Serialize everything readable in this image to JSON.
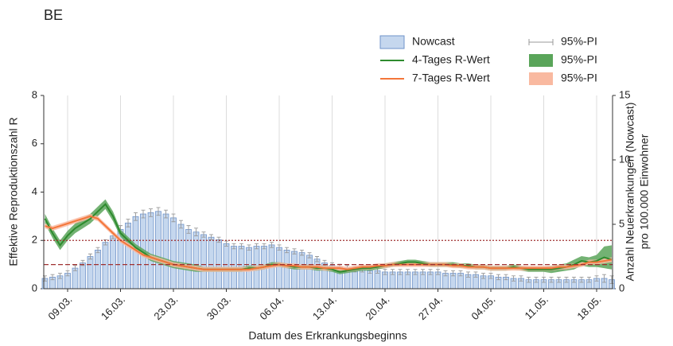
{
  "chart_data": {
    "type": "bar-line",
    "title": "BE",
    "xlabel": "Datum des Erkrankungsbeginns",
    "ylabel": "Effektive Reproduktionszahl R",
    "y2label": [
      "Anzahl Neuerkrankungen (Nowcast)",
      "pro 100.000 Einwohner"
    ],
    "categories": [
      null,
      null,
      null,
      "09.03.",
      null,
      null,
      null,
      null,
      null,
      null,
      "16.03.",
      null,
      null,
      null,
      null,
      null,
      null,
      "23.03.",
      null,
      null,
      null,
      null,
      null,
      null,
      "30.03.",
      null,
      null,
      null,
      null,
      null,
      null,
      "06.04.",
      null,
      null,
      null,
      null,
      null,
      null,
      "13.04.",
      null,
      null,
      null,
      null,
      null,
      null,
      "20.04.",
      null,
      null,
      null,
      null,
      null,
      null,
      "27.04.",
      null,
      null,
      null,
      null,
      null,
      null,
      "04.05.",
      null,
      null,
      null,
      null,
      null,
      null,
      "11.05.",
      null,
      null,
      null,
      null,
      null,
      null,
      "18.05.",
      null,
      null
    ],
    "ylim": [
      0,
      8
    ],
    "yticks": [
      0,
      2,
      4,
      6,
      8
    ],
    "y2lim": [
      0,
      15
    ],
    "y2ticks": [
      0,
      5,
      10,
      15
    ],
    "hlines": [
      {
        "value": 1,
        "style": "dashed"
      },
      {
        "value": 2,
        "style": "dotted"
      }
    ],
    "grid": true,
    "series": [
      {
        "name": "Nowcast",
        "type": "bar",
        "axis": "y2",
        "color": "#c5d7ee",
        "edge": "#6f93c9",
        "values": [
          0.8,
          0.9,
          1.0,
          1.2,
          1.6,
          2.0,
          2.5,
          3.0,
          3.6,
          4.1,
          4.6,
          5.1,
          5.6,
          5.8,
          5.9,
          6.0,
          5.8,
          5.5,
          5.0,
          4.6,
          4.4,
          4.2,
          4.0,
          3.8,
          3.5,
          3.3,
          3.3,
          3.2,
          3.3,
          3.3,
          3.4,
          3.2,
          3.0,
          2.9,
          2.8,
          2.6,
          2.3,
          2.0,
          1.8,
          1.7,
          1.6,
          1.5,
          1.5,
          1.4,
          1.4,
          1.3,
          1.3,
          1.3,
          1.3,
          1.3,
          1.3,
          1.3,
          1.3,
          1.2,
          1.2,
          1.2,
          1.1,
          1.1,
          1.0,
          1.0,
          0.9,
          0.9,
          0.8,
          0.8,
          0.7,
          0.7,
          0.7,
          0.7,
          0.7,
          0.7,
          0.7,
          0.7,
          0.7,
          0.8,
          0.8,
          0.7
        ]
      },
      {
        "name": "4-Tages R-Wert",
        "type": "line",
        "color": "#2e8b2e",
        "values": [
          2.9,
          2.3,
          1.8,
          2.2,
          2.5,
          2.7,
          2.9,
          3.2,
          3.5,
          3.0,
          2.3,
          2.0,
          1.7,
          1.5,
          1.3,
          1.2,
          1.1,
          1.0,
          0.95,
          0.9,
          0.85,
          0.8,
          0.8,
          0.8,
          0.8,
          0.8,
          0.8,
          0.85,
          0.85,
          0.9,
          1.0,
          1.0,
          0.95,
          0.9,
          0.9,
          0.9,
          0.85,
          0.85,
          0.8,
          0.7,
          0.75,
          0.8,
          0.85,
          0.85,
          0.9,
          0.95,
          1.0,
          1.05,
          1.1,
          1.1,
          1.05,
          1.0,
          1.0,
          1.0,
          1.0,
          0.95,
          0.95,
          0.9,
          0.9,
          0.85,
          0.85,
          0.85,
          0.9,
          0.85,
          0.8,
          0.8,
          0.8,
          0.8,
          0.85,
          0.9,
          1.0,
          1.15,
          1.1,
          1.15,
          1.3,
          1.2
        ]
      },
      {
        "name": "7-Tages R-Wert",
        "type": "line",
        "color": "#f4763a",
        "values": [
          2.6,
          2.5,
          2.6,
          2.7,
          2.8,
          2.9,
          3.0,
          2.9,
          2.6,
          2.3,
          2.0,
          1.8,
          1.6,
          1.4,
          1.3,
          1.2,
          1.1,
          1.0,
          0.95,
          0.9,
          0.85,
          0.8,
          0.8,
          0.8,
          0.8,
          0.8,
          0.8,
          0.8,
          0.85,
          0.9,
          0.95,
          1.0,
          0.95,
          0.95,
          0.9,
          0.9,
          0.9,
          0.85,
          0.85,
          0.85,
          0.8,
          0.85,
          0.9,
          0.9,
          0.95,
          0.95,
          1.0,
          1.0,
          1.0,
          1.0,
          1.0,
          1.0,
          1.0,
          1.0,
          0.95,
          0.95,
          0.9,
          0.9,
          0.9,
          0.85,
          0.85,
          0.85,
          0.85,
          0.85,
          0.85,
          0.85,
          0.85,
          0.85,
          0.9,
          0.9,
          0.95,
          1.0,
          1.1,
          1.1,
          1.15,
          1.2
        ]
      },
      {
        "name": "95%-PI",
        "type": "errorbar",
        "of": 0,
        "color": "#999999",
        "errors": [
          0.2,
          0.2,
          0.2,
          0.2,
          0.2,
          0.2,
          0.2,
          0.2,
          0.2,
          0.2,
          0.3,
          0.3,
          0.3,
          0.3,
          0.3,
          0.3,
          0.3,
          0.3,
          0.3,
          0.3,
          0.3,
          0.2,
          0.2,
          0.2,
          0.2,
          0.2,
          0.2,
          0.2,
          0.2,
          0.2,
          0.2,
          0.2,
          0.2,
          0.2,
          0.2,
          0.2,
          0.2,
          0.2,
          0.2,
          0.2,
          0.2,
          0.2,
          0.2,
          0.2,
          0.2,
          0.2,
          0.2,
          0.2,
          0.2,
          0.2,
          0.2,
          0.2,
          0.2,
          0.2,
          0.2,
          0.2,
          0.2,
          0.2,
          0.2,
          0.2,
          0.2,
          0.2,
          0.2,
          0.2,
          0.2,
          0.2,
          0.2,
          0.2,
          0.2,
          0.2,
          0.2,
          0.2,
          0.2,
          0.2,
          0.3,
          0.3
        ]
      },
      {
        "name": "95%-PI",
        "type": "band",
        "color": "#5aa55a",
        "lower": [
          2.7,
          2.1,
          1.6,
          2.0,
          2.3,
          2.5,
          2.7,
          3.0,
          3.3,
          2.8,
          2.15,
          1.85,
          1.55,
          1.35,
          1.15,
          1.05,
          0.95,
          0.85,
          0.8,
          0.75,
          0.7,
          0.7,
          0.7,
          0.7,
          0.7,
          0.7,
          0.7,
          0.75,
          0.75,
          0.8,
          0.9,
          0.9,
          0.85,
          0.8,
          0.8,
          0.8,
          0.75,
          0.75,
          0.7,
          0.6,
          0.65,
          0.7,
          0.75,
          0.75,
          0.8,
          0.85,
          0.9,
          0.95,
          1.0,
          1.0,
          0.95,
          0.9,
          0.9,
          0.9,
          0.9,
          0.85,
          0.85,
          0.8,
          0.8,
          0.75,
          0.75,
          0.75,
          0.8,
          0.75,
          0.7,
          0.7,
          0.7,
          0.65,
          0.7,
          0.75,
          0.8,
          0.95,
          0.9,
          0.9,
          0.85,
          0.8
        ],
        "upper": [
          3.1,
          2.5,
          2.0,
          2.4,
          2.7,
          2.9,
          3.1,
          3.4,
          3.7,
          3.2,
          2.45,
          2.15,
          1.85,
          1.65,
          1.45,
          1.35,
          1.25,
          1.15,
          1.1,
          1.05,
          1.0,
          0.9,
          0.9,
          0.9,
          0.9,
          0.9,
          0.9,
          0.95,
          0.95,
          1.0,
          1.1,
          1.1,
          1.05,
          1.0,
          1.0,
          1.0,
          0.95,
          0.95,
          0.9,
          0.8,
          0.85,
          0.9,
          0.95,
          0.95,
          1.0,
          1.05,
          1.1,
          1.15,
          1.2,
          1.2,
          1.15,
          1.1,
          1.1,
          1.1,
          1.1,
          1.05,
          1.05,
          1.0,
          1.0,
          0.95,
          0.95,
          0.95,
          1.0,
          0.95,
          0.9,
          0.9,
          0.9,
          0.95,
          1.0,
          1.05,
          1.2,
          1.35,
          1.3,
          1.4,
          1.75,
          1.8
        ]
      },
      {
        "name": "95%-PI",
        "type": "band",
        "color": "#f9b9a0",
        "lower": [
          2.5,
          2.4,
          2.5,
          2.6,
          2.7,
          2.8,
          2.9,
          2.8,
          2.5,
          2.2,
          1.9,
          1.7,
          1.5,
          1.3,
          1.2,
          1.1,
          1.0,
          0.9,
          0.85,
          0.8,
          0.75,
          0.7,
          0.7,
          0.7,
          0.7,
          0.7,
          0.7,
          0.7,
          0.75,
          0.8,
          0.85,
          0.9,
          0.85,
          0.85,
          0.8,
          0.8,
          0.8,
          0.75,
          0.75,
          0.75,
          0.7,
          0.75,
          0.8,
          0.8,
          0.85,
          0.85,
          0.9,
          0.9,
          0.9,
          0.9,
          0.9,
          0.9,
          0.9,
          0.9,
          0.85,
          0.85,
          0.8,
          0.8,
          0.8,
          0.75,
          0.75,
          0.75,
          0.75,
          0.75,
          0.75,
          0.75,
          0.75,
          0.75,
          0.8,
          0.8,
          0.85,
          0.9,
          1.0,
          1.0,
          1.05,
          1.1
        ],
        "upper": [
          2.7,
          2.6,
          2.7,
          2.8,
          2.9,
          3.0,
          3.1,
          3.0,
          2.7,
          2.4,
          2.1,
          1.9,
          1.7,
          1.5,
          1.4,
          1.3,
          1.2,
          1.1,
          1.05,
          1.0,
          0.95,
          0.9,
          0.9,
          0.9,
          0.9,
          0.9,
          0.9,
          0.9,
          0.95,
          1.0,
          1.05,
          1.1,
          1.05,
          1.05,
          1.0,
          1.0,
          1.0,
          0.95,
          0.95,
          0.95,
          0.9,
          0.95,
          1.0,
          1.0,
          1.05,
          1.05,
          1.1,
          1.1,
          1.1,
          1.1,
          1.1,
          1.1,
          1.1,
          1.1,
          1.05,
          1.05,
          1.0,
          1.0,
          1.0,
          0.95,
          0.95,
          0.95,
          0.95,
          0.95,
          0.95,
          0.95,
          0.95,
          0.95,
          1.0,
          1.0,
          1.05,
          1.1,
          1.2,
          1.2,
          1.25,
          1.3
        ]
      }
    ]
  }
}
